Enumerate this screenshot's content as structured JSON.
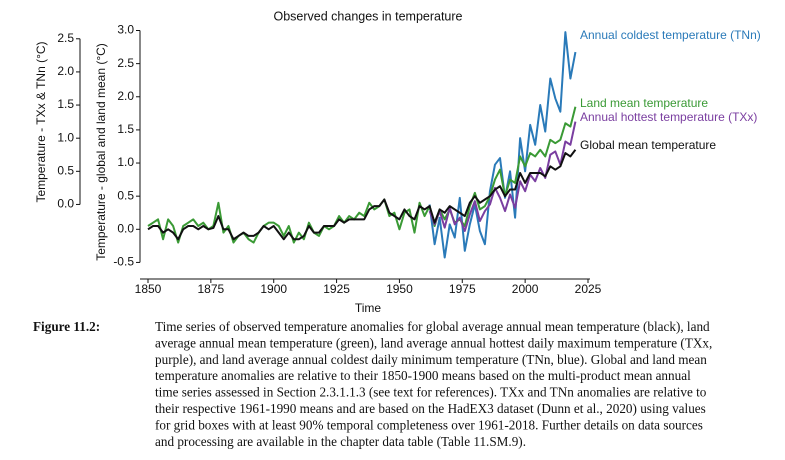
{
  "chart_data": {
    "type": "line",
    "title": "Observed changes in temperature",
    "xlabel": "Time",
    "ylabel": "Temperature - global and land mean (°C)",
    "y2label": "Temperature - TXx & TNn (°C)",
    "xlim": [
      1850,
      2025
    ],
    "xticks": [
      1850,
      1875,
      1900,
      1925,
      1950,
      1975,
      2000,
      2025
    ],
    "ylim": [
      -0.75,
      3.0
    ],
    "yticks": [
      -0.5,
      {
        "value": 0,
        "label": "0.0"
      },
      0.5,
      {
        "value": 1,
        "label": "1.0"
      },
      1.5,
      {
        "value": 2,
        "label": "2.0"
      },
      2.5,
      {
        "value": 3,
        "label": "3.0"
      }
    ],
    "y2lim": [
      -1.125,
      2.625
    ],
    "y2ticks": [
      {
        "value": 0,
        "label": "0.0"
      },
      0.5,
      {
        "value": 1,
        "label": "1.0"
      },
      1.5,
      {
        "value": 2,
        "label": "2.0"
      },
      2.5
    ],
    "series": [
      {
        "name": "Annual coldest temperature (TNn)",
        "color": "#2a7ab9",
        "axis": "y2",
        "x": [
          1962,
          1964,
          1966,
          1968,
          1970,
          1972,
          1974,
          1976,
          1978,
          1980,
          1982,
          1984,
          1986,
          1988,
          1990,
          1992,
          1994,
          1996,
          1998,
          2000,
          2002,
          2004,
          2006,
          2008,
          2010,
          2012,
          2014,
          2016,
          2018,
          2020
        ],
        "values": [
          0.0,
          -0.6,
          -0.2,
          -0.8,
          -0.3,
          -0.5,
          0.1,
          -0.7,
          -0.3,
          0.0,
          -0.4,
          -0.6,
          0.2,
          0.6,
          0.7,
          0.1,
          0.5,
          -0.2,
          1.0,
          0.5,
          1.2,
          0.9,
          1.5,
          1.1,
          1.9,
          1.6,
          1.4,
          2.6,
          1.9,
          2.3
        ]
      },
      {
        "name": "Land mean temperature",
        "color": "#3a9a35",
        "x": [
          1850,
          1852,
          1854,
          1856,
          1858,
          1860,
          1862,
          1864,
          1866,
          1868,
          1870,
          1872,
          1874,
          1876,
          1878,
          1880,
          1882,
          1884,
          1886,
          1888,
          1890,
          1892,
          1894,
          1896,
          1898,
          1900,
          1902,
          1904,
          1906,
          1908,
          1910,
          1912,
          1914,
          1916,
          1918,
          1920,
          1922,
          1924,
          1926,
          1928,
          1930,
          1932,
          1934,
          1936,
          1938,
          1940,
          1942,
          1944,
          1946,
          1948,
          1950,
          1952,
          1954,
          1956,
          1958,
          1960,
          1962,
          1964,
          1966,
          1968,
          1970,
          1972,
          1974,
          1976,
          1978,
          1980,
          1982,
          1984,
          1986,
          1988,
          1990,
          1992,
          1994,
          1996,
          1998,
          2000,
          2002,
          2004,
          2006,
          2008,
          2010,
          2012,
          2014,
          2016,
          2018,
          2020
        ],
        "values": [
          0.05,
          0.1,
          0.15,
          -0.15,
          0.15,
          0.05,
          -0.2,
          0.05,
          0.1,
          0.15,
          0.05,
          0.1,
          0.0,
          0.05,
          0.4,
          -0.05,
          0.05,
          -0.2,
          -0.1,
          -0.05,
          -0.15,
          -0.2,
          -0.05,
          0.05,
          0.1,
          0.1,
          0.05,
          -0.1,
          0.05,
          -0.2,
          -0.05,
          -0.15,
          0.1,
          -0.05,
          -0.1,
          0.05,
          0.0,
          0.05,
          0.2,
          0.1,
          0.2,
          0.15,
          0.25,
          0.2,
          0.4,
          0.3,
          0.35,
          0.45,
          0.2,
          0.25,
          0.0,
          0.25,
          0.3,
          -0.05,
          0.4,
          0.2,
          0.35,
          0.05,
          0.3,
          0.15,
          0.3,
          0.1,
          0.15,
          0.05,
          0.35,
          0.55,
          0.3,
          0.35,
          0.5,
          0.75,
          0.9,
          0.5,
          0.75,
          0.7,
          1.1,
          0.95,
          1.15,
          1.1,
          1.2,
          1.1,
          1.35,
          1.3,
          1.35,
          1.6,
          1.55,
          1.85
        ]
      },
      {
        "name": "Annual hottest temperature (TXx)",
        "color": "#7a3ea0",
        "axis": "y2",
        "x": [
          1962,
          1964,
          1966,
          1968,
          1970,
          1972,
          1974,
          1976,
          1978,
          1980,
          1982,
          1984,
          1986,
          1988,
          1990,
          1992,
          1994,
          1996,
          1998,
          2000,
          2002,
          2004,
          2006,
          2008,
          2010,
          2012,
          2014,
          2016,
          2018,
          2020
        ],
        "values": [
          -0.1,
          -0.3,
          -0.1,
          -0.35,
          -0.05,
          -0.3,
          -0.2,
          -0.4,
          -0.15,
          0.05,
          -0.25,
          -0.1,
          0.0,
          0.25,
          0.1,
          -0.1,
          0.15,
          -0.05,
          0.35,
          0.2,
          0.45,
          0.35,
          0.55,
          0.4,
          0.75,
          0.8,
          0.6,
          0.95,
          0.9,
          1.25
        ]
      },
      {
        "name": "Global mean temperature",
        "color": "#111111",
        "x": [
          1850,
          1852,
          1854,
          1856,
          1858,
          1860,
          1862,
          1864,
          1866,
          1868,
          1870,
          1872,
          1874,
          1876,
          1878,
          1880,
          1882,
          1884,
          1886,
          1888,
          1890,
          1892,
          1894,
          1896,
          1898,
          1900,
          1902,
          1904,
          1906,
          1908,
          1910,
          1912,
          1914,
          1916,
          1918,
          1920,
          1922,
          1924,
          1926,
          1928,
          1930,
          1932,
          1934,
          1936,
          1938,
          1940,
          1942,
          1944,
          1946,
          1948,
          1950,
          1952,
          1954,
          1956,
          1958,
          1960,
          1962,
          1964,
          1966,
          1968,
          1970,
          1972,
          1974,
          1976,
          1978,
          1980,
          1982,
          1984,
          1986,
          1988,
          1990,
          1992,
          1994,
          1996,
          1998,
          2000,
          2002,
          2004,
          2006,
          2008,
          2010,
          2012,
          2014,
          2016,
          2018,
          2020
        ],
        "values": [
          0.0,
          0.05,
          0.05,
          -0.05,
          0.0,
          -0.05,
          -0.15,
          0.0,
          0.05,
          0.05,
          0.0,
          0.05,
          0.0,
          0.02,
          0.2,
          0.0,
          0.0,
          -0.15,
          -0.1,
          -0.05,
          -0.1,
          -0.1,
          -0.05,
          0.05,
          0.0,
          0.05,
          -0.05,
          -0.15,
          -0.05,
          -0.15,
          -0.15,
          -0.1,
          0.05,
          -0.05,
          -0.05,
          0.05,
          0.05,
          0.05,
          0.15,
          0.1,
          0.15,
          0.15,
          0.15,
          0.15,
          0.3,
          0.35,
          0.35,
          0.45,
          0.25,
          0.2,
          0.15,
          0.3,
          0.2,
          0.15,
          0.35,
          0.3,
          0.35,
          0.1,
          0.3,
          0.25,
          0.35,
          0.3,
          0.25,
          0.2,
          0.4,
          0.5,
          0.4,
          0.45,
          0.5,
          0.6,
          0.65,
          0.5,
          0.6,
          0.6,
          0.85,
          0.7,
          0.85,
          0.85,
          0.85,
          0.8,
          0.95,
          0.9,
          0.95,
          1.15,
          1.1,
          1.2
        ]
      }
    ]
  },
  "caption": {
    "label": "Figure 11.2:",
    "lines": [
      "Time series of observed temperature anomalies for global average annual mean temperature (black), land",
      "average annual mean temperature (green), land average annual hottest daily maximum temperature (TXx,",
      "purple), and land average annual coldest daily minimum temperature (TNn, blue). Global and land mean",
      "temperature anomalies are relative to their 1850-1900 means based on the multi-product mean annual",
      "time series assessed in Section 2.3.1.1.3 (see text for references). TXx and TNn anomalies are relative to",
      "their respective 1961-1990 means and are based on the HadEX3 dataset (Dunn et al., 2020) using values",
      "for grid boxes with at least 90% temporal completeness over 1961-2018. Further details on data sources",
      "and processing are available in the chapter data table (Table 11.SM.9)."
    ]
  }
}
